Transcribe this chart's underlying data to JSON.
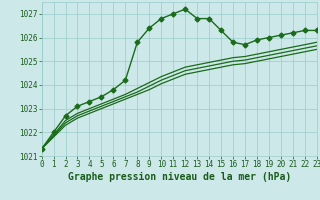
{
  "series": [
    {
      "x": [
        0,
        1,
        2,
        3,
        4,
        5,
        6,
        7,
        8,
        9,
        10,
        11,
        12,
        13,
        14,
        15,
        16,
        17,
        18,
        19,
        20,
        21,
        22,
        23
      ],
      "y": [
        1021.3,
        1022.0,
        1022.7,
        1023.1,
        1023.3,
        1023.5,
        1023.8,
        1024.2,
        1025.8,
        1026.4,
        1026.8,
        1027.0,
        1027.2,
        1026.8,
        1026.8,
        1026.3,
        1025.8,
        1025.7,
        1025.9,
        1026.0,
        1026.1,
        1026.2,
        1026.3,
        1026.3
      ],
      "color": "#1a6b1a",
      "linewidth": 1.0,
      "marker": "D",
      "markersize": 2.5
    },
    {
      "x": [
        0,
        1,
        2,
        3,
        4,
        5,
        6,
        7,
        8,
        9,
        10,
        11,
        12,
        13,
        14,
        15,
        16,
        17,
        18,
        19,
        20,
        21,
        22,
        23
      ],
      "y": [
        1021.3,
        1021.9,
        1022.5,
        1022.8,
        1023.0,
        1023.2,
        1023.4,
        1023.6,
        1023.85,
        1024.1,
        1024.35,
        1024.55,
        1024.75,
        1024.85,
        1024.95,
        1025.05,
        1025.15,
        1025.2,
        1025.3,
        1025.4,
        1025.5,
        1025.6,
        1025.7,
        1025.8
      ],
      "color": "#1a6b1a",
      "linewidth": 0.9,
      "marker": null,
      "markersize": 0
    },
    {
      "x": [
        0,
        1,
        2,
        3,
        4,
        5,
        6,
        7,
        8,
        9,
        10,
        11,
        12,
        13,
        14,
        15,
        16,
        17,
        18,
        19,
        20,
        21,
        22,
        23
      ],
      "y": [
        1021.3,
        1021.85,
        1022.4,
        1022.7,
        1022.9,
        1023.1,
        1023.3,
        1023.5,
        1023.7,
        1023.95,
        1024.2,
        1024.4,
        1024.6,
        1024.7,
        1024.8,
        1024.9,
        1025.0,
        1025.05,
        1025.15,
        1025.25,
        1025.35,
        1025.45,
        1025.55,
        1025.65
      ],
      "color": "#1a6b1a",
      "linewidth": 0.9,
      "marker": null,
      "markersize": 0
    },
    {
      "x": [
        0,
        1,
        2,
        3,
        4,
        5,
        6,
        7,
        8,
        9,
        10,
        11,
        12,
        13,
        14,
        15,
        16,
        17,
        18,
        19,
        20,
        21,
        22,
        23
      ],
      "y": [
        1021.3,
        1021.8,
        1022.3,
        1022.6,
        1022.8,
        1023.0,
        1023.2,
        1023.4,
        1023.6,
        1023.8,
        1024.05,
        1024.25,
        1024.45,
        1024.55,
        1024.65,
        1024.75,
        1024.85,
        1024.9,
        1025.0,
        1025.1,
        1025.2,
        1025.3,
        1025.4,
        1025.5
      ],
      "color": "#1a6b1a",
      "linewidth": 0.9,
      "marker": null,
      "markersize": 0
    }
  ],
  "xlim": [
    0,
    23
  ],
  "ylim": [
    1021,
    1027.5
  ],
  "yticks": [
    1021,
    1022,
    1023,
    1024,
    1025,
    1026,
    1027
  ],
  "xticks": [
    0,
    1,
    2,
    3,
    4,
    5,
    6,
    7,
    8,
    9,
    10,
    11,
    12,
    13,
    14,
    15,
    16,
    17,
    18,
    19,
    20,
    21,
    22,
    23
  ],
  "xlabel": "Graphe pression niveau de la mer (hPa)",
  "background_color": "#cce8e8",
  "grid_color": "#99cccc",
  "tick_color": "#1a5c1a",
  "label_color": "#1a5c1a"
}
